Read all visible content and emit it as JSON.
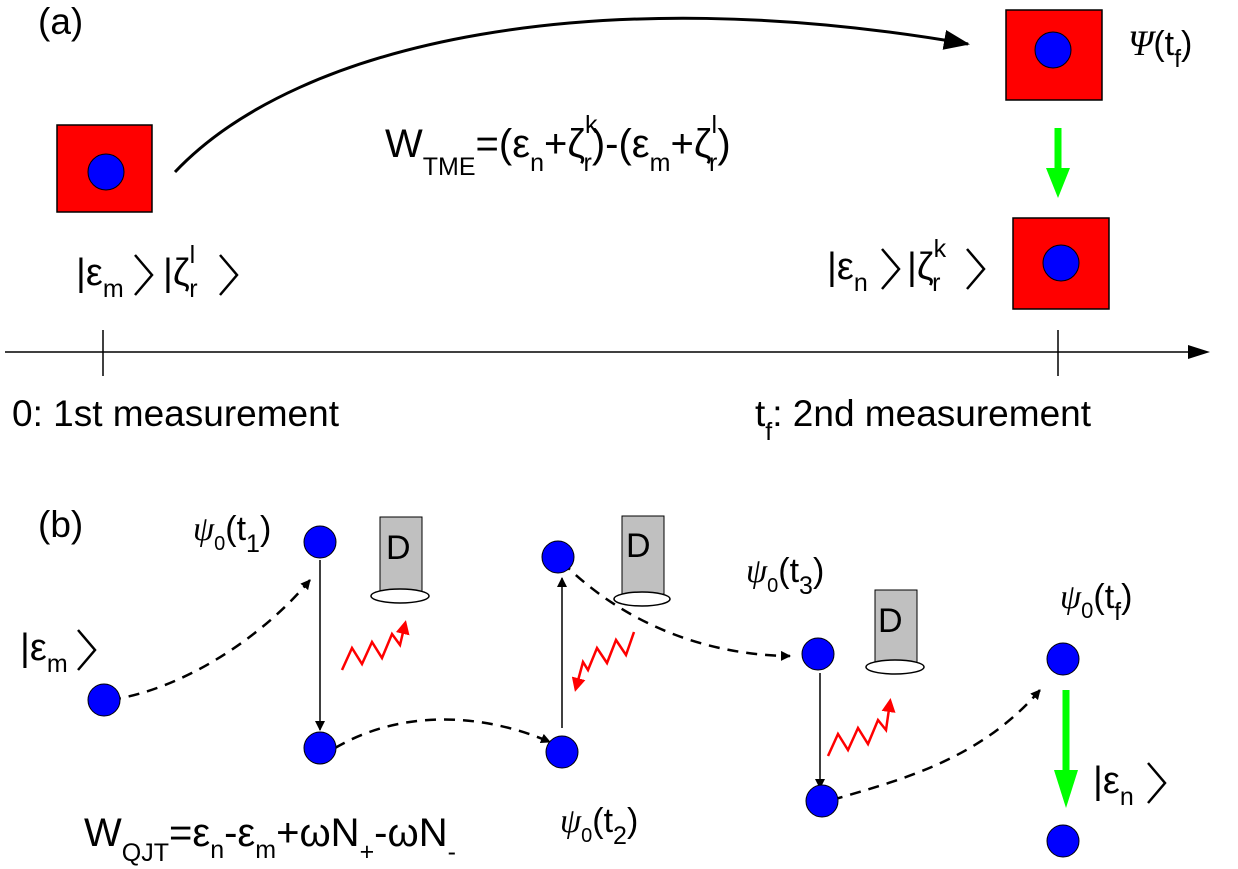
{
  "panel_a": {
    "label": "(a)",
    "initial_state": {
      "pre": "|",
      "eps": "ε",
      "eps_sub": "m",
      "zeta": "ζ",
      "zeta_sup": "l",
      "zeta_sub": "r"
    },
    "final_state": {
      "pre": "|",
      "eps": "ε",
      "eps_sub": "n",
      "zeta": "ζ",
      "zeta_sup": "k",
      "zeta_sub": "r"
    },
    "psi_final": {
      "psi": "Ψ",
      "arg": "(t",
      "arg_sub": "f",
      "close": ")"
    },
    "formula": {
      "W": "W",
      "W_sub": "TME",
      "p1": "=(",
      "e1": "ε",
      "e1_sub": "n",
      "plus1": "+",
      "z1": "ζ",
      "z1_sup": "k",
      "z1_sub": "r",
      "p2": ")-(",
      "e2": "ε",
      "e2_sub": "m",
      "plus2": "+",
      "z2": "ζ",
      "z2_sup": "l",
      "z2_sub": "r",
      "p3": ")"
    },
    "timeline": {
      "first_label": "0: 1st measurement",
      "second_t": "t",
      "second_sub": "f",
      "second_rest": ": 2nd measurement"
    },
    "colors": {
      "box": "#ff0000",
      "dot": "#0000ff",
      "projection_arrow": "#00ff00"
    }
  },
  "panel_b": {
    "label": "(b)",
    "start_state": {
      "pre": "|",
      "eps": "ε",
      "eps_sub": "m"
    },
    "end_state": {
      "pre": "|",
      "eps": "ε",
      "eps_sub": "n"
    },
    "psi_labels": [
      {
        "psi": "ψ",
        "sub0": "0",
        "arg": "(t",
        "arg_sub": "1",
        "close": ")"
      },
      {
        "psi": "ψ",
        "sub0": "0",
        "arg": "(t",
        "arg_sub": "2",
        "close": ")"
      },
      {
        "psi": "ψ",
        "sub0": "0",
        "arg": "(t",
        "arg_sub": "3",
        "close": ")"
      },
      {
        "psi": "ψ",
        "sub0": "0",
        "arg": "(t",
        "arg_sub": "f",
        "close": ")"
      }
    ],
    "detectors": [
      "D",
      "D",
      "D"
    ],
    "formula": {
      "W": "W",
      "W_sub": "QJT",
      "eq": "=ε",
      "en_sub": "n",
      "minus": "-ε",
      "em_sub": "m",
      "rest1": "+ωN",
      "plus_sub": "+",
      "rest2": "-ωN",
      "minus_sub": "-"
    },
    "colors": {
      "dot": "#0000ff",
      "photon": "#ff0000",
      "detector": "#c0c0c0",
      "projection_arrow": "#00ff00"
    }
  }
}
